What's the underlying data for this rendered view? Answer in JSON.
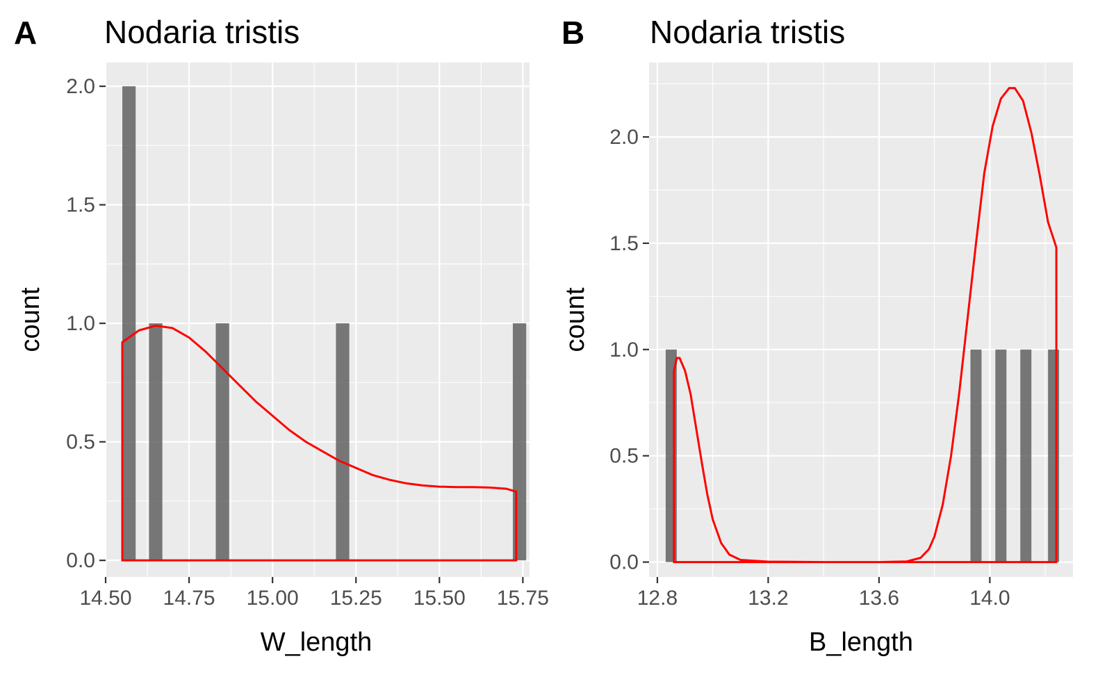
{
  "chart_data": [
    {
      "panel": "A",
      "type": "histogram+density",
      "title": "Nodaria tristis",
      "xlabel": "W_length",
      "ylabel": "count",
      "xlim": [
        14.5,
        15.77
      ],
      "ylim": [
        -0.07,
        2.1
      ],
      "xticks": [
        "14.50",
        "14.75",
        "15.00",
        "15.25",
        "15.50",
        "15.75"
      ],
      "yticks": [
        "0.0",
        "0.5",
        "1.0",
        "1.5",
        "2.0"
      ],
      "bars": [
        {
          "x": 14.57,
          "count": 2
        },
        {
          "x": 14.65,
          "count": 1
        },
        {
          "x": 14.85,
          "count": 1
        },
        {
          "x": 15.21,
          "count": 1
        },
        {
          "x": 15.74,
          "count": 1
        }
      ],
      "bar_width": 0.04,
      "density_curve": [
        [
          14.55,
          0.0
        ],
        [
          14.55,
          0.92
        ],
        [
          14.6,
          0.97
        ],
        [
          14.65,
          0.99
        ],
        [
          14.7,
          0.98
        ],
        [
          14.75,
          0.94
        ],
        [
          14.8,
          0.88
        ],
        [
          14.85,
          0.81
        ],
        [
          14.9,
          0.74
        ],
        [
          14.95,
          0.67
        ],
        [
          15.0,
          0.61
        ],
        [
          15.05,
          0.55
        ],
        [
          15.1,
          0.5
        ],
        [
          15.15,
          0.46
        ],
        [
          15.2,
          0.42
        ],
        [
          15.25,
          0.39
        ],
        [
          15.3,
          0.36
        ],
        [
          15.35,
          0.34
        ],
        [
          15.4,
          0.325
        ],
        [
          15.45,
          0.316
        ],
        [
          15.5,
          0.311
        ],
        [
          15.55,
          0.309
        ],
        [
          15.6,
          0.309
        ],
        [
          15.65,
          0.307
        ],
        [
          15.7,
          0.302
        ],
        [
          15.73,
          0.29
        ],
        [
          15.73,
          0.0
        ],
        [
          14.55,
          0.0
        ]
      ],
      "colors": {
        "bar": "#595959",
        "density": "#ff0000",
        "panel_background": "#ebebeb"
      }
    },
    {
      "panel": "B",
      "type": "histogram+density",
      "title": "Nodaria tristis",
      "xlabel": "B_length",
      "ylabel": "count",
      "xlim": [
        12.77,
        14.3
      ],
      "ylim": [
        -0.07,
        2.35
      ],
      "xticks": [
        "12.8",
        "13.2",
        "13.6",
        "14.0"
      ],
      "yticks": [
        "0.0",
        "0.5",
        "1.0",
        "1.5",
        "2.0"
      ],
      "bars": [
        {
          "x": 12.85,
          "count": 1
        },
        {
          "x": 13.95,
          "count": 1
        },
        {
          "x": 14.04,
          "count": 1
        },
        {
          "x": 14.13,
          "count": 1
        },
        {
          "x": 14.23,
          "count": 1
        }
      ],
      "bar_width": 0.04,
      "density_curve": [
        [
          12.86,
          0.0
        ],
        [
          12.86,
          0.9
        ],
        [
          12.87,
          0.96
        ],
        [
          12.88,
          0.96
        ],
        [
          12.9,
          0.9
        ],
        [
          12.92,
          0.79
        ],
        [
          12.94,
          0.63
        ],
        [
          12.96,
          0.47
        ],
        [
          12.98,
          0.32
        ],
        [
          13.0,
          0.2
        ],
        [
          13.03,
          0.09
        ],
        [
          13.06,
          0.035
        ],
        [
          13.1,
          0.01
        ],
        [
          13.2,
          0.002
        ],
        [
          13.4,
          0.0
        ],
        [
          13.6,
          0.0
        ],
        [
          13.7,
          0.003
        ],
        [
          13.75,
          0.02
        ],
        [
          13.78,
          0.06
        ],
        [
          13.8,
          0.12
        ],
        [
          13.83,
          0.27
        ],
        [
          13.86,
          0.5
        ],
        [
          13.89,
          0.8
        ],
        [
          13.92,
          1.15
        ],
        [
          13.95,
          1.5
        ],
        [
          13.98,
          1.83
        ],
        [
          14.01,
          2.05
        ],
        [
          14.04,
          2.18
        ],
        [
          14.07,
          2.23
        ],
        [
          14.09,
          2.23
        ],
        [
          14.12,
          2.17
        ],
        [
          14.15,
          2.02
        ],
        [
          14.18,
          1.82
        ],
        [
          14.21,
          1.6
        ],
        [
          14.24,
          1.48
        ],
        [
          14.24,
          0.0
        ],
        [
          12.86,
          0.0
        ]
      ],
      "colors": {
        "bar": "#595959",
        "density": "#ff0000",
        "panel_background": "#ebebeb"
      }
    }
  ]
}
